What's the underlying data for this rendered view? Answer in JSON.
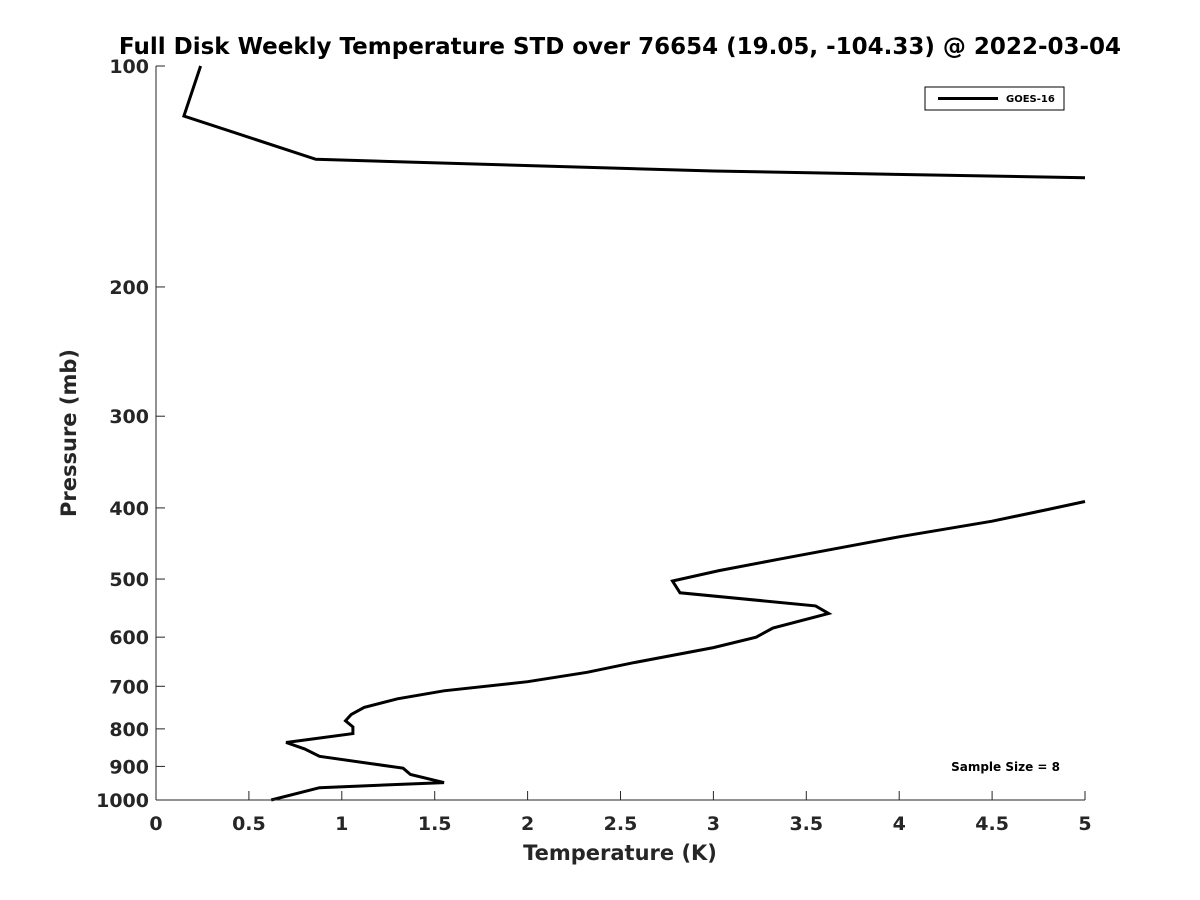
{
  "chart_data": {
    "type": "line",
    "title": "Full Disk Weekly Temperature STD over 76654 (19.05, -104.33) @ 2022-03-04",
    "xlabel": "Temperature (K)",
    "ylabel": "Pressure (mb)",
    "xlim": [
      0,
      5
    ],
    "ylim": [
      100,
      1000
    ],
    "yscale": "log",
    "yreversed": true,
    "grid": false,
    "legend_position": "top-right",
    "x_ticks": [
      0,
      0.5,
      1,
      1.5,
      2,
      2.5,
      3,
      3.5,
      4,
      4.5,
      5
    ],
    "x_tick_labels": [
      "0",
      "0.5",
      "1",
      "1.5",
      "2",
      "2.5",
      "3",
      "3.5",
      "4",
      "4.5",
      "5"
    ],
    "y_ticks": [
      100,
      200,
      300,
      400,
      500,
      600,
      700,
      800,
      900,
      1000
    ],
    "y_tick_labels": [
      "100",
      "200",
      "300",
      "400",
      "500",
      "600",
      "700",
      "800",
      "900",
      "1000"
    ],
    "series": [
      {
        "name": "GOES-16",
        "color": "#000000",
        "segments": [
          {
            "x": [
              0.24,
              0.15,
              0.86,
              3.0,
              5.0
            ],
            "y": [
              100,
              117,
              134,
              139,
              142
            ]
          },
          {
            "x": [
              5.0,
              4.8,
              4.5,
              4.0,
              3.35,
              3.03,
              2.78,
              2.82,
              3.55,
              3.62,
              3.32,
              3.23,
              3.0,
              2.57,
              2.32,
              2.0,
              1.55,
              1.3,
              1.12,
              1.05,
              1.02,
              1.06,
              1.06,
              0.7,
              0.8,
              0.88,
              1.33,
              1.37,
              1.55,
              0.88,
              0.62
            ],
            "y": [
              392,
              402,
              417,
              438,
              470,
              487,
              503,
              522,
              544,
              557,
              583,
              600,
              620,
              650,
              670,
              690,
              710,
              728,
              748,
              765,
              780,
              795,
              812,
              835,
              852,
              872,
              905,
              923,
              947,
              962,
              1000
            ]
          }
        ]
      }
    ],
    "annotations": [
      "Sample Size = 8"
    ]
  }
}
